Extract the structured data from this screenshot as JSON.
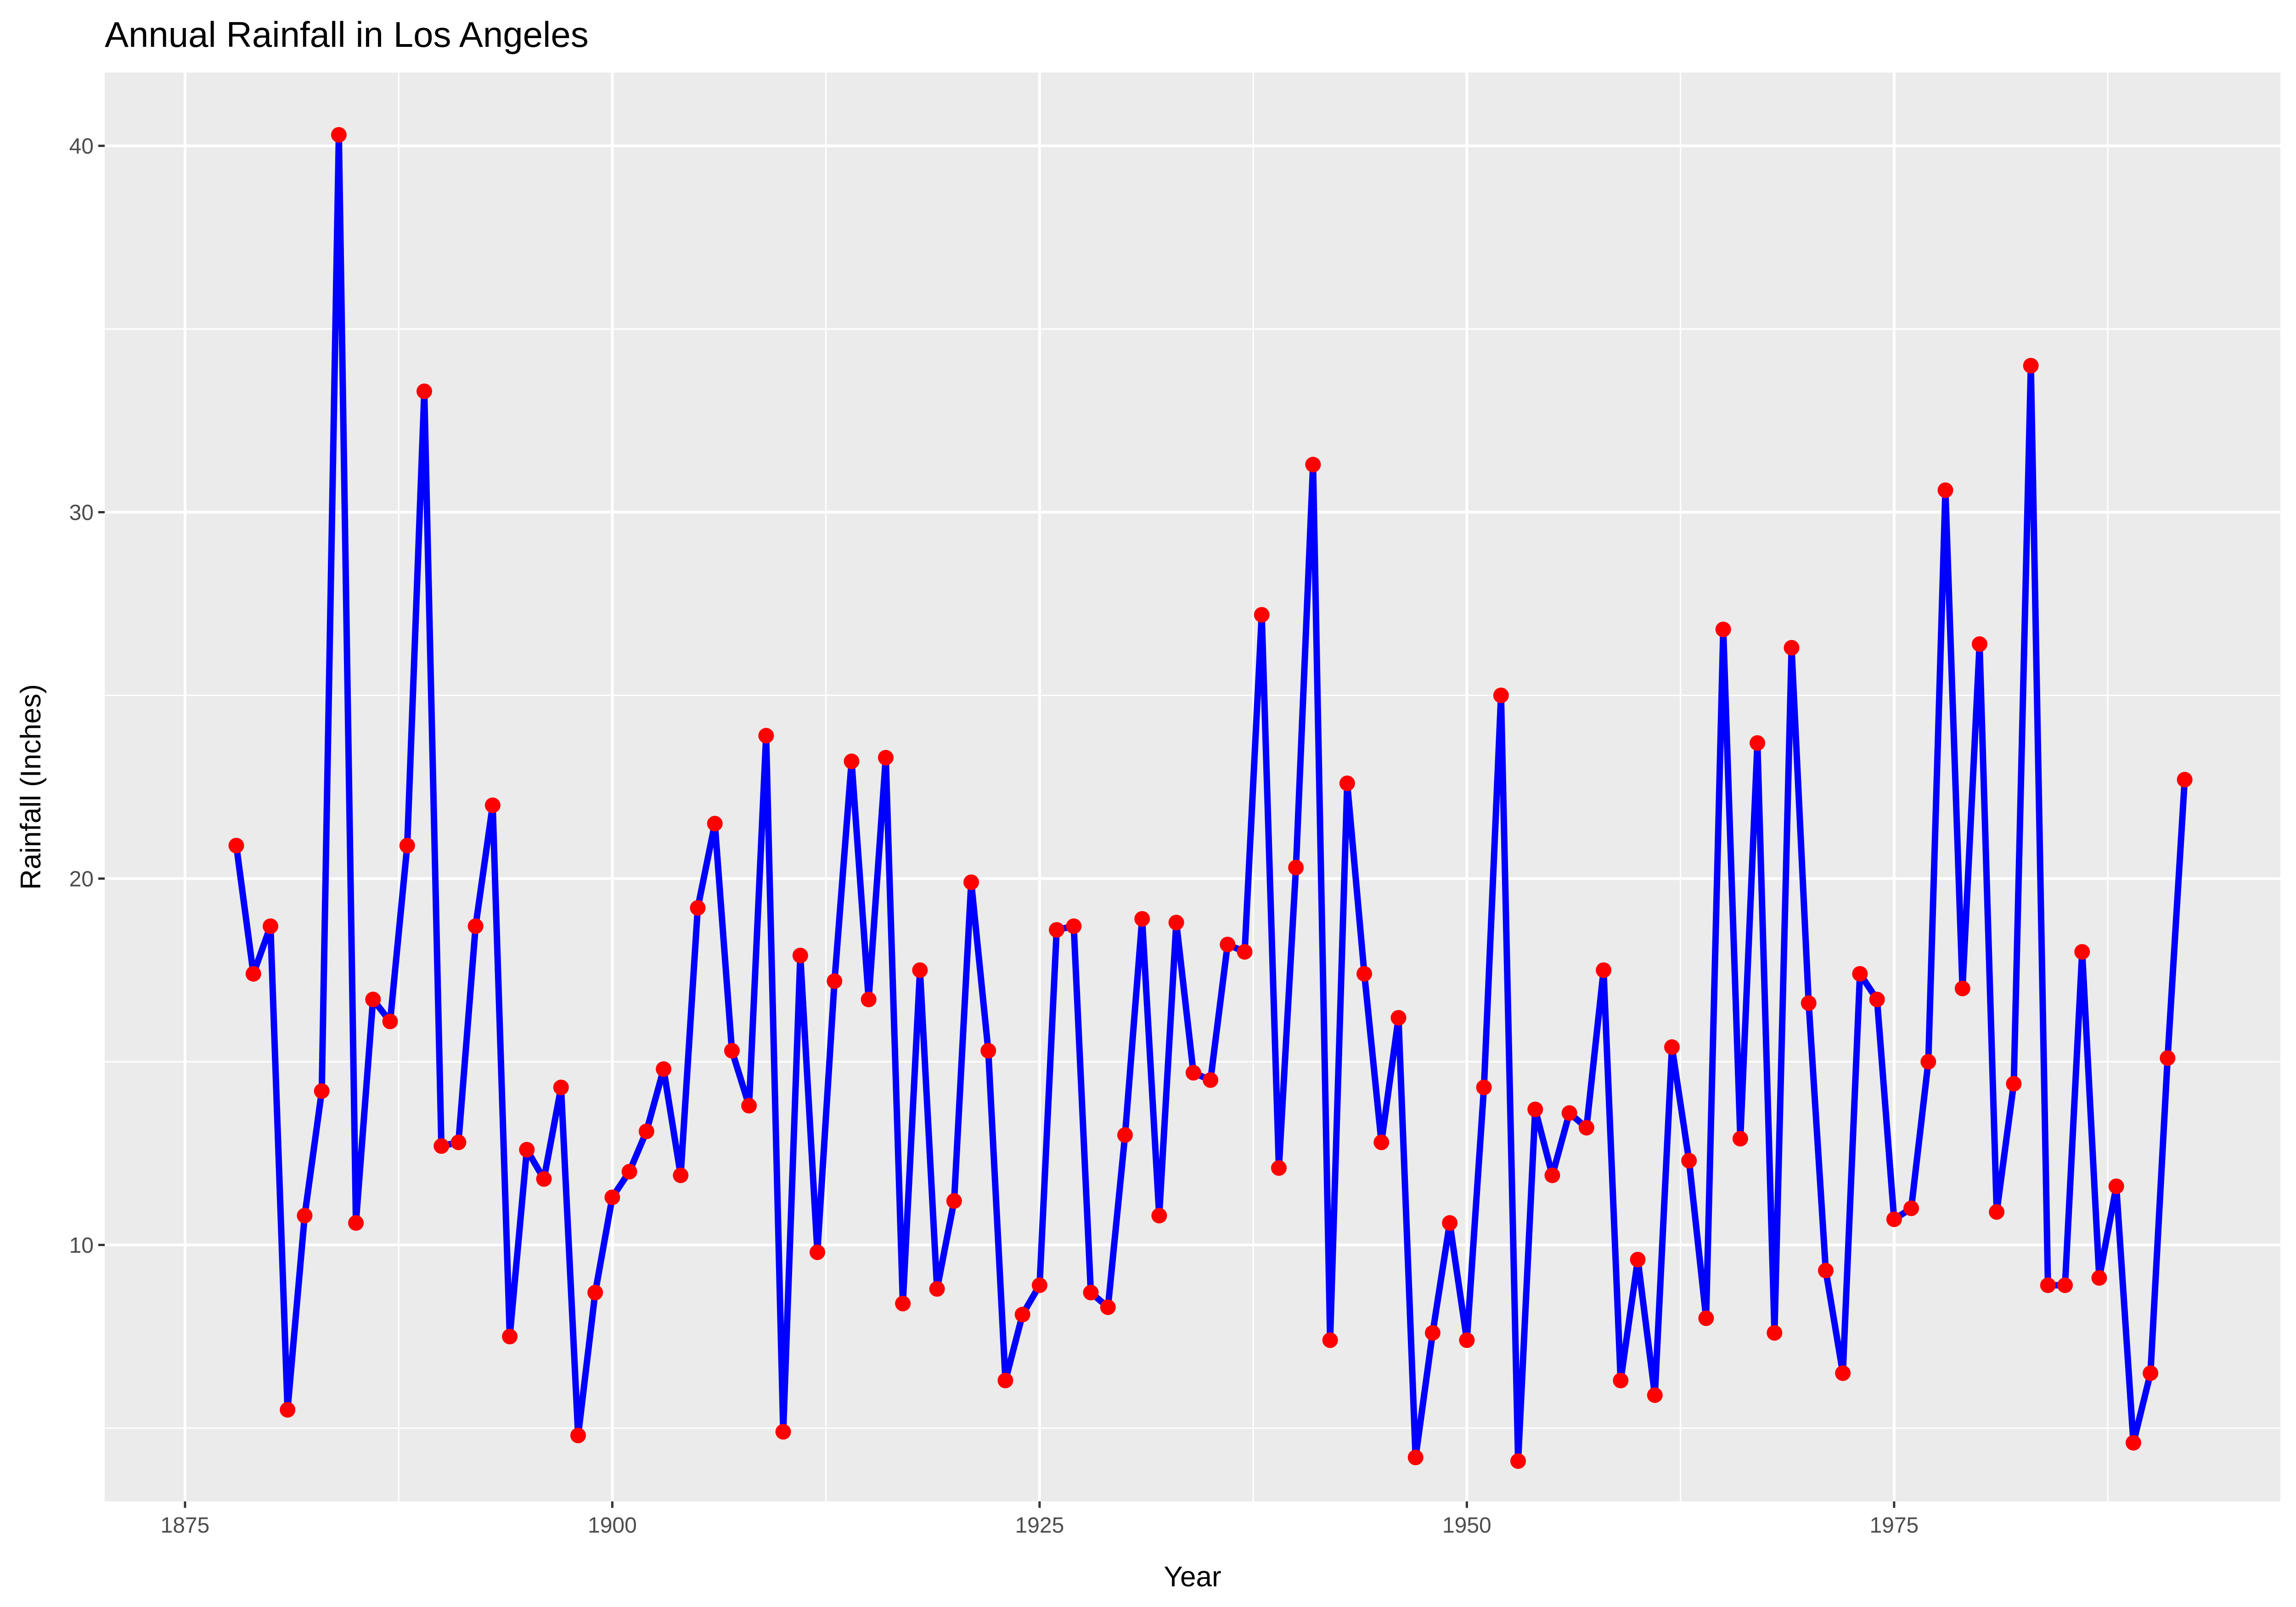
{
  "chart_data": {
    "type": "line",
    "title": "Annual Rainfall in Los Angeles",
    "xlabel": "Year",
    "ylabel": "Rainfall (Inches)",
    "xlim": [
      1870.3,
      1997.6
    ],
    "ylim": [
      3.0,
      42.0
    ],
    "x_ticks": [
      1875,
      1900,
      1925,
      1950,
      1975
    ],
    "y_ticks": [
      10,
      20,
      30,
      40
    ],
    "x_minor_ticks": [
      1887.5,
      1912.5,
      1937.5,
      1962.5,
      1987.5
    ],
    "y_minor_ticks": [
      5,
      15,
      25,
      35
    ],
    "grid": true,
    "line_color": "#0000ff",
    "point_color": "#ff0000",
    "panel_background": "#ebebeb",
    "grid_color": "#ffffff",
    "series": [
      {
        "x": [
          1878,
          1879,
          1880,
          1881,
          1882,
          1883,
          1884,
          1885,
          1886,
          1887,
          1888,
          1889,
          1890,
          1891,
          1892,
          1893,
          1894,
          1895,
          1896,
          1897,
          1898,
          1899,
          1900,
          1901,
          1902,
          1903,
          1904,
          1905,
          1906,
          1907,
          1908,
          1909,
          1910,
          1911,
          1912,
          1913,
          1914,
          1915,
          1916,
          1917,
          1918,
          1919,
          1920,
          1921,
          1922,
          1923,
          1924,
          1925,
          1926,
          1927,
          1928,
          1929,
          1930,
          1931,
          1932,
          1933,
          1934,
          1935,
          1936,
          1937,
          1938,
          1939,
          1940,
          1941,
          1942,
          1943,
          1944,
          1945,
          1946,
          1947,
          1948,
          1949,
          1950,
          1951,
          1952,
          1953,
          1954,
          1955,
          1956,
          1957,
          1958,
          1959,
          1960,
          1961,
          1962,
          1963,
          1964,
          1965,
          1966,
          1967,
          1968,
          1969,
          1970,
          1971,
          1972,
          1973,
          1974,
          1975,
          1976,
          1977,
          1978,
          1979,
          1980,
          1981,
          1982,
          1983,
          1984,
          1985,
          1986,
          1987,
          1988,
          1989,
          1990,
          1991,
          1992
        ],
        "y": [
          20.9,
          17.4,
          18.7,
          5.5,
          10.8,
          14.2,
          40.3,
          10.6,
          16.7,
          16.1,
          20.9,
          33.3,
          12.7,
          12.8,
          18.7,
          22.0,
          7.5,
          12.6,
          11.8,
          14.3,
          4.8,
          8.7,
          11.3,
          12.0,
          13.1,
          14.8,
          11.9,
          19.2,
          21.5,
          15.3,
          13.8,
          23.9,
          4.9,
          17.9,
          9.8,
          17.2,
          23.2,
          16.7,
          23.3,
          8.4,
          17.5,
          8.8,
          11.2,
          19.9,
          15.3,
          6.3,
          8.1,
          8.9,
          18.6,
          18.7,
          8.7,
          8.3,
          13.0,
          18.9,
          10.8,
          18.8,
          14.7,
          14.5,
          18.2,
          18.0,
          27.2,
          12.1,
          20.3,
          31.3,
          7.4,
          22.6,
          17.4,
          12.8,
          16.2,
          4.2,
          7.6,
          10.6,
          7.4,
          14.3,
          25.0,
          4.1,
          13.7,
          11.9,
          13.6,
          13.2,
          17.5,
          6.3,
          9.6,
          5.9,
          15.4,
          12.3,
          8.0,
          26.8,
          12.9,
          23.7,
          7.6,
          26.3,
          16.6,
          9.3,
          6.5,
          17.4,
          16.7,
          10.7,
          11.0,
          15.0,
          30.6,
          17.0,
          26.4,
          10.9,
          14.4,
          34.0,
          8.9,
          8.9,
          18.0,
          9.1,
          11.6,
          4.6,
          6.5,
          15.1,
          22.7
        ]
      }
    ]
  }
}
